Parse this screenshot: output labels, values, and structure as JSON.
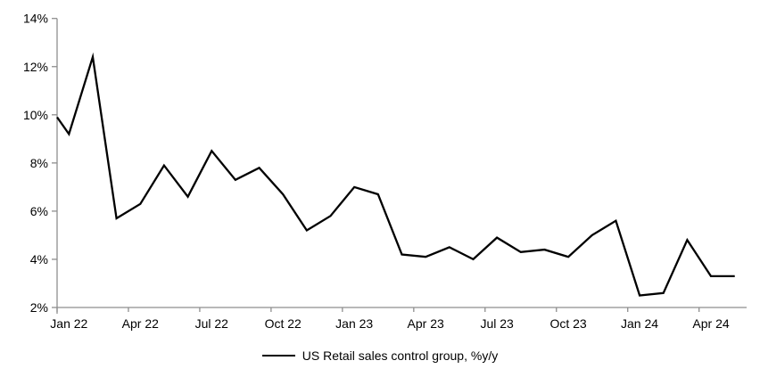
{
  "chart_data": {
    "type": "line",
    "title": "",
    "xlabel": "",
    "ylabel": "",
    "ylim": [
      2,
      14
    ],
    "grid": false,
    "y_tick_labels": [
      "14%",
      "12%",
      "10%",
      "8%",
      "6%",
      "4%",
      "2%"
    ],
    "y_tick_values": [
      14,
      12,
      10,
      8,
      6,
      4,
      2
    ],
    "x_tick_labels": [
      "Jan 22",
      "Apr 22",
      "Jul 22",
      "Oct 22",
      "Jan 23",
      "Apr 23",
      "Jul 23",
      "Oct 23",
      "Jan 24",
      "Apr 24"
    ],
    "series": [
      {
        "name": "US Retail sales control group, %y/y",
        "months": [
          "Jan 22",
          "Feb 22",
          "Mar 22",
          "Apr 22",
          "May 22",
          "Jun 22",
          "Jul 22",
          "Aug 22",
          "Sep 22",
          "Oct 22",
          "Nov 22",
          "Dec 22",
          "Jan 23",
          "Feb 23",
          "Mar 23",
          "Apr 23",
          "May 23",
          "Jun 23",
          "Jul 23",
          "Aug 23",
          "Sep 23",
          "Oct 23",
          "Nov 23",
          "Dec 23",
          "Jan 24",
          "Feb 24",
          "Mar 24",
          "Apr 24",
          "May 24"
        ],
        "values": [
          9.2,
          12.4,
          5.7,
          6.3,
          7.9,
          6.6,
          8.5,
          7.3,
          7.8,
          6.7,
          5.2,
          5.8,
          7.0,
          6.7,
          4.2,
          4.1,
          4.5,
          4.0,
          4.9,
          4.3,
          4.4,
          4.1,
          5.0,
          5.6,
          2.5,
          2.6,
          4.8,
          3.3,
          3.3
        ],
        "clipped_entry_value_at_left_axis": 9.9
      }
    ],
    "legend": {
      "label": "US Retail sales control group, %y/y",
      "position": "bottom-center"
    },
    "colors": {
      "line": "#000000",
      "axis": "#8e8e8e",
      "text": "#000000",
      "background": "#ffffff"
    }
  }
}
